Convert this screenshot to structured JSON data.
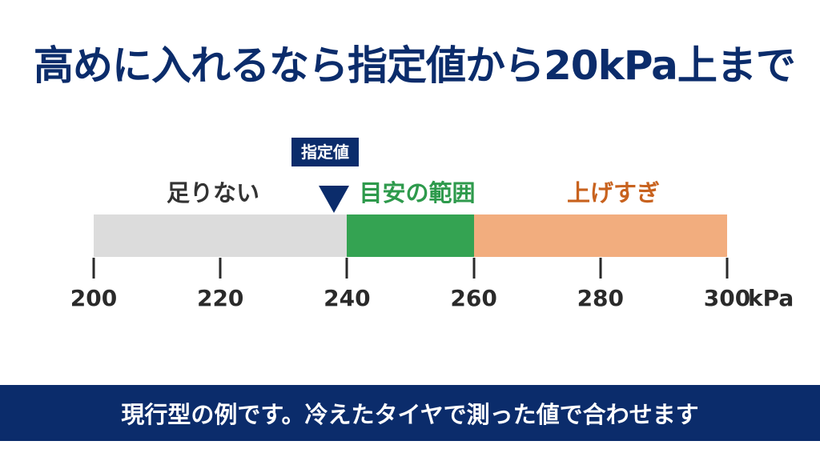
{
  "title": "高めに入れるなら指定値から20kPa上まで",
  "gauge": {
    "min": 200,
    "max": 300,
    "ticks": [
      "200",
      "220",
      "240",
      "260",
      "280",
      "300"
    ],
    "unit": "kPa",
    "target_label": "指定値",
    "target_value": 240,
    "zones": [
      {
        "label": "足りない",
        "from": 200,
        "to": 240,
        "color": "#dcdcdc"
      },
      {
        "label": "目安の範囲",
        "from": 240,
        "to": 260,
        "color": "#34a352"
      },
      {
        "label": "上げすぎ",
        "from": 260,
        "to": 300,
        "color": "#f2ad7e"
      }
    ]
  },
  "footer": "現行型の例です。冷えたタイヤで測った値で合わせます"
}
